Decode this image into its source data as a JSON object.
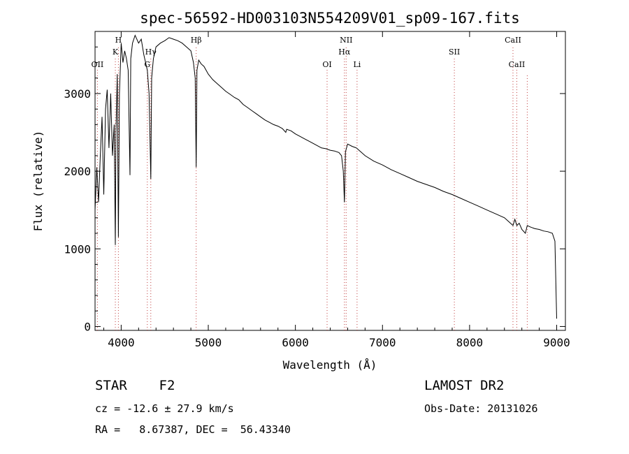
{
  "chart_data": {
    "type": "line",
    "title": "spec-56592-HD003103N554209V01_sp09-167.fits",
    "xlabel": "Wavelength (Å)",
    "ylabel": "Flux (relative)",
    "xlim": [
      3700,
      9100
    ],
    "ylim": [
      -50,
      3800
    ],
    "x_ticks": [
      4000,
      5000,
      6000,
      7000,
      8000,
      9000
    ],
    "y_ticks": [
      0,
      1000,
      2000,
      3000
    ],
    "grid": false,
    "series": [
      {
        "x": [
          3700,
          3720,
          3740,
          3760,
          3780,
          3800,
          3820,
          3840,
          3860,
          3880,
          3900,
          3920,
          3933,
          3940,
          3955,
          3968,
          3980,
          4000,
          4020,
          4040,
          4060,
          4080,
          4101,
          4110,
          4130,
          4160,
          4200,
          4230,
          4260,
          4300,
          4320,
          4340,
          4350,
          4370,
          4400,
          4450,
          4500,
          4550,
          4600,
          4650,
          4700,
          4750,
          4800,
          4830,
          4850,
          4861,
          4870,
          4890,
          4920,
          4950,
          5000,
          5050,
          5100,
          5150,
          5200,
          5250,
          5300,
          5350,
          5400,
          5450,
          5500,
          5550,
          5600,
          5650,
          5700,
          5750,
          5800,
          5850,
          5890,
          5900,
          5950,
          6000,
          6050,
          6100,
          6150,
          6200,
          6250,
          6300,
          6350,
          6400,
          6450,
          6500,
          6530,
          6550,
          6563,
          6575,
          6600,
          6650,
          6700,
          6750,
          6800,
          6900,
          7000,
          7100,
          7200,
          7300,
          7400,
          7500,
          7600,
          7700,
          7800,
          7900,
          8000,
          8100,
          8200,
          8300,
          8400,
          8450,
          8498,
          8520,
          8542,
          8570,
          8600,
          8640,
          8662,
          8700,
          8750,
          8800,
          8850,
          8900,
          8950,
          8980,
          9000
        ],
        "y": [
          1500,
          2050,
          1600,
          2200,
          2700,
          1700,
          2800,
          3050,
          2300,
          3000,
          2200,
          2600,
          1050,
          2500,
          3250,
          1150,
          3000,
          3650,
          3400,
          3550,
          3450,
          3300,
          1950,
          3450,
          3650,
          3750,
          3650,
          3700,
          3500,
          3300,
          3000,
          1900,
          3200,
          3450,
          3600,
          3650,
          3680,
          3720,
          3700,
          3680,
          3650,
          3600,
          3550,
          3400,
          3200,
          2050,
          3300,
          3430,
          3380,
          3350,
          3250,
          3180,
          3130,
          3080,
          3030,
          2990,
          2950,
          2920,
          2860,
          2820,
          2780,
          2740,
          2700,
          2660,
          2630,
          2600,
          2580,
          2550,
          2500,
          2540,
          2520,
          2480,
          2450,
          2420,
          2390,
          2360,
          2330,
          2300,
          2290,
          2270,
          2260,
          2240,
          2200,
          2000,
          1600,
          2250,
          2350,
          2320,
          2300,
          2250,
          2200,
          2130,
          2080,
          2020,
          1970,
          1920,
          1870,
          1830,
          1790,
          1740,
          1700,
          1650,
          1600,
          1550,
          1500,
          1450,
          1400,
          1350,
          1300,
          1380,
          1300,
          1330,
          1250,
          1200,
          1300,
          1280,
          1260,
          1250,
          1230,
          1220,
          1200,
          1100,
          100
        ]
      }
    ],
    "lines": [
      {
        "name": "OII",
        "x": 3727,
        "row": 3
      },
      {
        "name": "K",
        "x": 3933,
        "row": 2
      },
      {
        "name": "H",
        "x": 3968,
        "row": 1
      },
      {
        "name": "G",
        "x": 4300,
        "row": 3
      },
      {
        "name": "Hγ",
        "x": 4340,
        "row": 2
      },
      {
        "name": "Hβ",
        "x": 4861,
        "row": 1
      },
      {
        "name": "OI",
        "x": 6364,
        "row": 3
      },
      {
        "name": "NII",
        "x": 6583,
        "row": 1
      },
      {
        "name": "Hα",
        "x": 6563,
        "row": 2
      },
      {
        "name": "Li",
        "x": 6708,
        "row": 3
      },
      {
        "name": "SII",
        "x": 7825,
        "row": 2
      },
      {
        "name": "CaII",
        "x": 8498,
        "row": 1
      },
      {
        "name": "CaII",
        "x": 8542,
        "row": 3
      },
      {
        "name": "",
        "x": 8662,
        "row": 0
      }
    ]
  },
  "info": {
    "class_label": "STAR    F2",
    "survey": "LAMOST DR2",
    "cz": "cz = -12.6 ± 27.9 km/s",
    "obs_date": "Obs-Date: 20131026",
    "coords": "RA =   8.67387, DEC =  56.43340"
  }
}
